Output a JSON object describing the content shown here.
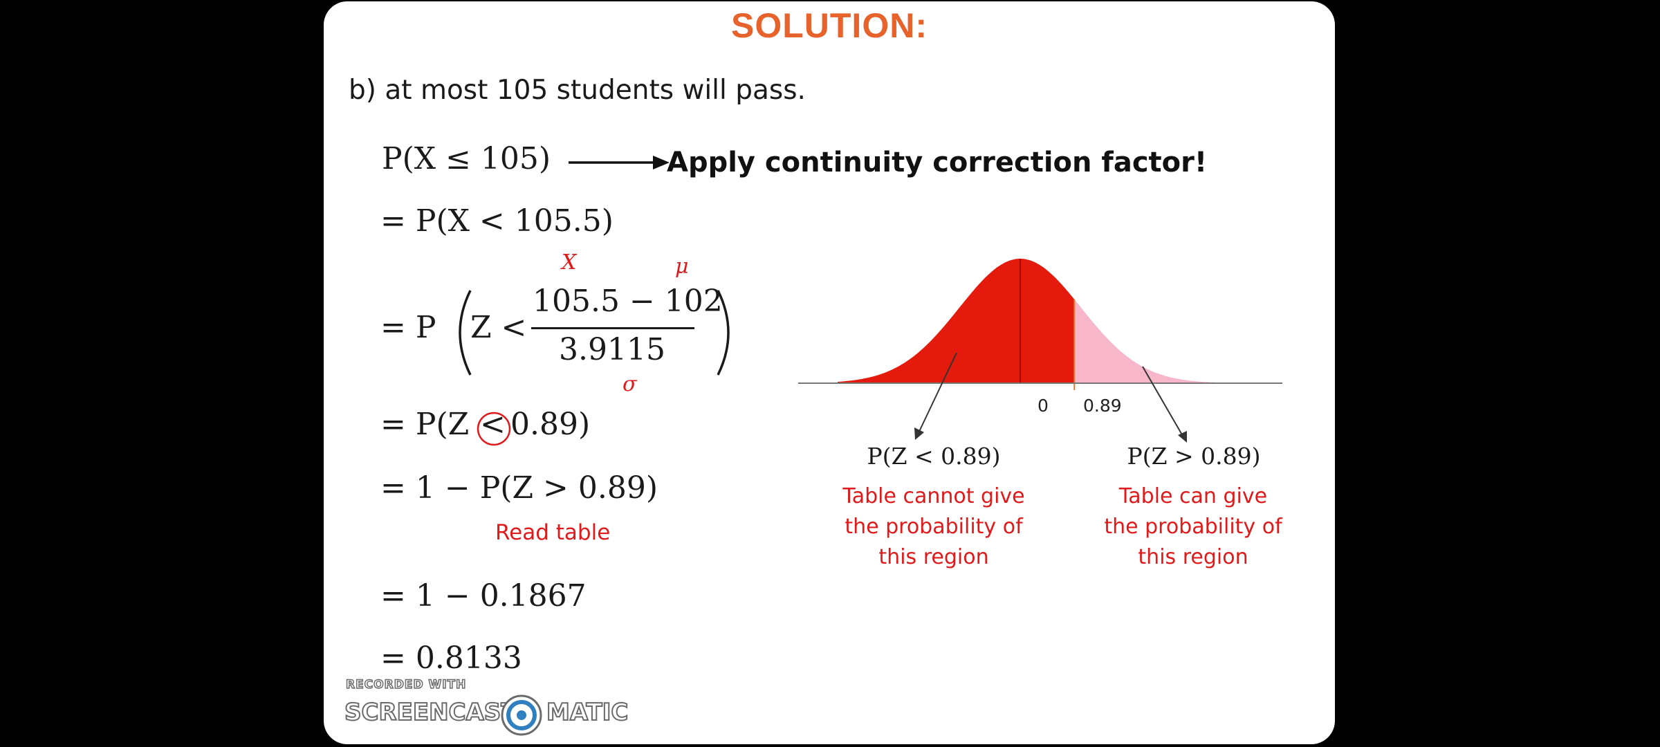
{
  "slide": {
    "title": "SOLUTION:",
    "question": "b) at most 105 students will pass."
  },
  "steps": {
    "s1_left": "P(X ≤ 105)",
    "s1_note": "Apply continuity correction factor!",
    "s2": "= P(X < 105.5)",
    "s3_prefix": "= P",
    "s3_z": "Z <",
    "s3_numerator": "105.5 − 102",
    "s3_denominator": "3.9115",
    "s3_label_x": "X",
    "s3_label_mu": "μ",
    "s3_label_sigma": "σ",
    "s4_before": "= P(Z",
    "s4_symbol": "<",
    "s4_after": "0.89)",
    "s5": "= 1 − P(Z > 0.89)",
    "s5_note": "Read table",
    "s6": "= 1 − 0.1867",
    "s7": "= 0.8133"
  },
  "diagram": {
    "tick_zero": "0",
    "tick_z": "0.89",
    "z_value": 0.89,
    "left_label": "P(Z < 0.89)",
    "left_caption": [
      "Table cannot give",
      "the probability of",
      "this region"
    ],
    "right_label": "P(Z > 0.89)",
    "right_caption": [
      "Table can give",
      "the probability of",
      "this region"
    ],
    "colors": {
      "left_region": "#e41b0c",
      "right_region": "#f7b6c9"
    }
  },
  "watermark": {
    "line1": "RECORDED WITH",
    "brand_left": "SCREENCAST",
    "brand_right": "MATIC"
  }
}
